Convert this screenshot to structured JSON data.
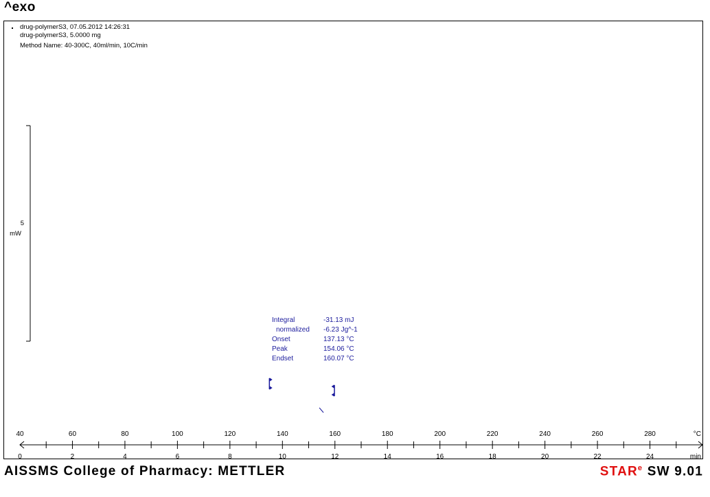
{
  "header": {
    "exo_label": "^exo",
    "line1": "drug-polymerS3, 07.05.2012 14:26:31",
    "line2": "drug-polymerS3, 5.0000 mg",
    "line3": "Method Name: 40-300C, 40ml/min, 10C/min"
  },
  "scale_bar": {
    "value": "5",
    "unit": "mW"
  },
  "results": {
    "labels": [
      "Integral",
      "normalized",
      "Onset",
      "Peak",
      "Endset"
    ],
    "values": [
      "-31.13 mJ",
      "-6.23 Jg^-1",
      "137.13 °C",
      "154.06 °C",
      "160.07 °C"
    ]
  },
  "footer": {
    "left": "AISSMS College of Pharmacy: METTLER",
    "right_star_s": "S",
    "right_star_tar": "TAR",
    "right_star_e": "e",
    "right_sw": " SW 9.01"
  },
  "colors": {
    "annotation": "#1a1a9c",
    "brand_red": "#e01010",
    "axis": "#000000"
  },
  "chart_data": {
    "type": "line",
    "title": "",
    "xlabel": "°C",
    "x2label": "min",
    "xlim": [
      40,
      300
    ],
    "x_ticks": [
      40,
      60,
      80,
      100,
      120,
      140,
      160,
      180,
      200,
      220,
      240,
      260,
      280
    ],
    "x_unit_label": "°C",
    "time_ticks": [
      0,
      2,
      4,
      6,
      8,
      10,
      12,
      14,
      16,
      18,
      20,
      22,
      24
    ],
    "time_unit_label": "min",
    "series": [],
    "annotations": {
      "integral_mJ": -31.13,
      "normalized_Jg": -6.23,
      "onset_C": 137.13,
      "peak_C": 154.06,
      "endset_C": 160.07
    },
    "grid": false
  }
}
